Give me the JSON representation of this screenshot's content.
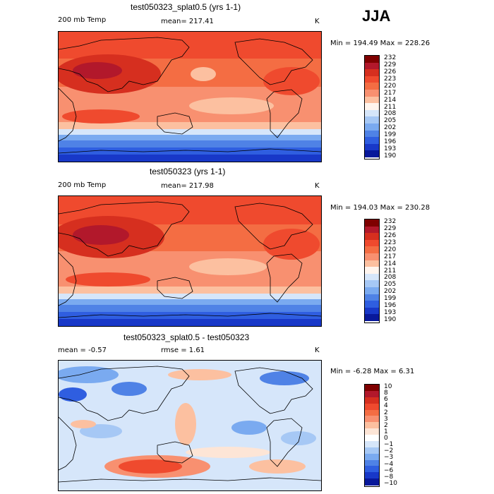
{
  "season": "JJA",
  "panels": [
    {
      "title": "test050323_splat0.5 (yrs 1-1)",
      "left_label": "200 mb Temp",
      "center_label": "mean= 217.41",
      "unit": "K",
      "stats": "Min = 194.49 Max = 228.26",
      "kind": "abs"
    },
    {
      "title": "test050323 (yrs 1-1)",
      "left_label": "200 mb Temp",
      "center_label": "mean= 217.98",
      "unit": "K",
      "stats": "Min = 194.03 Max = 230.28",
      "kind": "abs"
    },
    {
      "title": "test050323_splat0.5 - test050323",
      "left_label": "mean =   -0.57",
      "center_label": "rmse =    1.61",
      "unit": "K",
      "stats": "Min =  -6.28 Max =   6.31",
      "kind": "diff"
    }
  ],
  "chart_data": {
    "type": "heatmap",
    "variable": "200 mb Temp",
    "units": "K",
    "abs_levels": [
      "232",
      "229",
      "226",
      "223",
      "220",
      "217",
      "214",
      "211",
      "208",
      "205",
      "202",
      "199",
      "196",
      "193",
      "190"
    ],
    "abs_colors": [
      "#7f0000",
      "#b2182b",
      "#d62f1f",
      "#ef4a2e",
      "#f46d43",
      "#f89070",
      "#fcc0a0",
      "#fff5ee",
      "#d6e6fa",
      "#a6c8f5",
      "#7aaaf0",
      "#4f82e6",
      "#2f5ee0",
      "#1838c8",
      "#08189a"
    ],
    "diff_levels": [
      "10",
      "8",
      "6",
      "4",
      "2",
      "3",
      "2",
      "1",
      "0",
      "−1",
      "−2",
      "−3",
      "−4",
      "−6",
      "−8",
      "−10"
    ],
    "diff_colors": [
      "#7f0000",
      "#b2182b",
      "#d62f1f",
      "#ef4a2e",
      "#f46d43",
      "#f89070",
      "#fcc0a0",
      "#fde5d6",
      "#ffffff",
      "#d6e6fa",
      "#a6c8f5",
      "#7aaaf0",
      "#4f82e6",
      "#2f5ee0",
      "#1838c8",
      "#08189a"
    ]
  }
}
